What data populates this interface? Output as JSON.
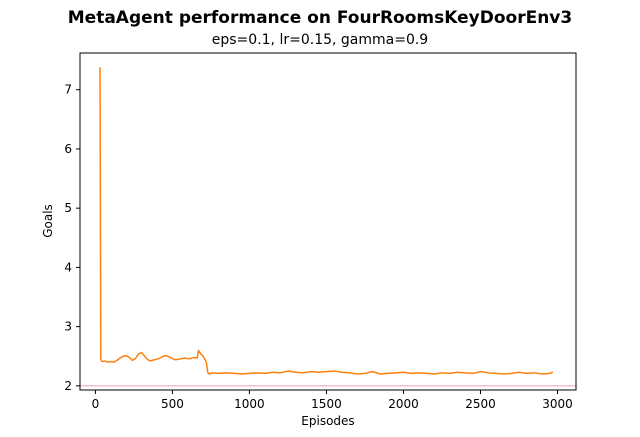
{
  "chart_data": {
    "type": "line",
    "title": "MetaAgent performance on FourRoomsKeyDoorEnv3",
    "subtitle": "eps=0.1, lr=0.15, gamma=0.9",
    "xlabel": "Episodes",
    "ylabel": "Goals",
    "xlim": [
      -100,
      3120
    ],
    "ylim": [
      1.93,
      7.62
    ],
    "xticks": [
      0,
      500,
      1000,
      1500,
      2000,
      2500,
      3000
    ],
    "yticks": [
      2,
      3,
      4,
      5,
      6,
      7
    ],
    "grid": false,
    "series": [
      {
        "color": "#ff7f0e",
        "x": [
          30,
          35,
          40,
          45,
          60,
          80,
          100,
          120,
          140,
          160,
          180,
          200,
          220,
          240,
          260,
          280,
          300,
          320,
          340,
          360,
          380,
          400,
          420,
          440,
          460,
          480,
          500,
          520,
          540,
          560,
          580,
          600,
          620,
          640,
          660,
          670,
          680,
          700,
          720,
          730,
          740,
          760,
          800,
          850,
          900,
          950,
          1000,
          1050,
          1100,
          1150,
          1200,
          1250,
          1300,
          1350,
          1400,
          1450,
          1500,
          1550,
          1600,
          1650,
          1700,
          1750,
          1800,
          1850,
          1900,
          1950,
          2000,
          2050,
          2100,
          2150,
          2200,
          2250,
          2300,
          2350,
          2400,
          2450,
          2500,
          2550,
          2600,
          2650,
          2700,
          2750,
          2800,
          2850,
          2900,
          2950,
          2970
        ],
        "y": [
          7.38,
          2.45,
          2.42,
          2.41,
          2.42,
          2.4,
          2.41,
          2.4,
          2.43,
          2.47,
          2.5,
          2.51,
          2.48,
          2.43,
          2.46,
          2.54,
          2.56,
          2.5,
          2.44,
          2.42,
          2.44,
          2.45,
          2.47,
          2.5,
          2.51,
          2.49,
          2.46,
          2.44,
          2.45,
          2.46,
          2.47,
          2.46,
          2.46,
          2.48,
          2.47,
          2.6,
          2.55,
          2.5,
          2.4,
          2.22,
          2.2,
          2.22,
          2.21,
          2.22,
          2.21,
          2.2,
          2.21,
          2.22,
          2.21,
          2.23,
          2.22,
          2.25,
          2.23,
          2.22,
          2.24,
          2.23,
          2.24,
          2.25,
          2.23,
          2.22,
          2.2,
          2.21,
          2.24,
          2.2,
          2.21,
          2.22,
          2.23,
          2.21,
          2.22,
          2.21,
          2.2,
          2.22,
          2.21,
          2.23,
          2.22,
          2.21,
          2.24,
          2.22,
          2.21,
          2.2,
          2.21,
          2.23,
          2.21,
          2.22,
          2.2,
          2.21,
          2.23
        ]
      },
      {
        "color": "#e8a0a8",
        "x": [
          -100,
          3120
        ],
        "y": [
          2.0,
          2.0
        ]
      }
    ]
  }
}
